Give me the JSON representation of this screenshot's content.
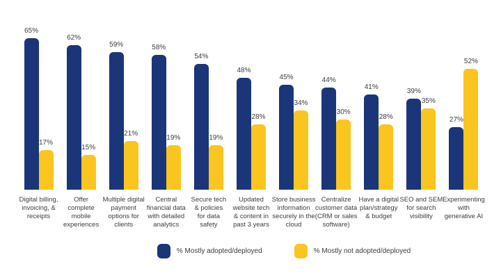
{
  "chart_data": {
    "type": "bar",
    "title": "",
    "xlabel": "",
    "ylabel": "",
    "value_suffix": "%",
    "ylim": [
      0,
      70
    ],
    "grid": false,
    "axes_visible": false,
    "legend_position": "bottom-center",
    "background_color": "#ffffff",
    "label_text_color": "#3c3c3c",
    "categories": [
      "Digital billing,\ninvoicing, &\nreceipts",
      "Offer\ncomplete\nmobile\nexperiences",
      "Multiple digital\npayment\noptions for\nclients",
      "Central\nfinancial data\nwith detailed\nanalytics",
      "Secure tech\n& policies\nfor data\nsafety",
      "Updated\nwebsite tech\n& content in\npast 3 years",
      "Store business\ninformation\nsecurely in the\ncloud",
      "Centralize\ncustomer data\n(CRM or sales\nsoftware)",
      "Have a digital\nplan/strategy\n& budget",
      "SEO and SEM\nfor search\nvisibility",
      "Experimenting\nwith\ngenerative AI"
    ],
    "series": [
      {
        "name": "% Mostly adopted/deployed",
        "color": "#1A3578",
        "values": [
          65,
          62,
          59,
          58,
          54,
          48,
          45,
          44,
          41,
          39,
          27
        ]
      },
      {
        "name": "% Mostly not adopted/deployed",
        "color": "#FAC51E",
        "values": [
          17,
          15,
          21,
          19,
          19,
          28,
          34,
          30,
          28,
          35,
          52
        ]
      }
    ]
  },
  "legend": {
    "items": [
      {
        "label": "% Mostly adopted/deployed",
        "color": "#1A3578"
      },
      {
        "label": "% Mostly not adopted/deployed",
        "color": "#FAC51E"
      }
    ]
  }
}
